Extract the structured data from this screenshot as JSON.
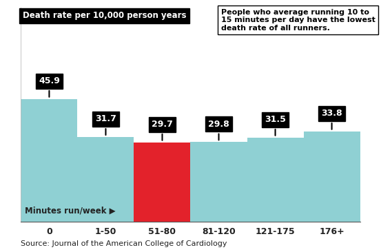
{
  "chart_data": {
    "type": "bar",
    "ylabel": "Death rate per 10,000 person years",
    "annotation": "People who average running 10 to 15 minutes per day have the lowest death rate of all runners.",
    "xlabel": "Minutes run/week ▶",
    "source": "Source: Journal of the American College of Cardiology",
    "categories": [
      "0",
      "1-50",
      "51-80",
      "81-120",
      "121-175",
      "176+"
    ],
    "values": [
      45.9,
      31.7,
      29.7,
      29.8,
      31.5,
      33.8
    ],
    "colors": [
      "#8fd0d3",
      "#8fd0d3",
      "#e3222b",
      "#8fd0d3",
      "#8fd0d3",
      "#8fd0d3"
    ],
    "ylim": [
      0,
      80
    ],
    "data_labels": true,
    "tick_labels": "x",
    "grid": false
  }
}
